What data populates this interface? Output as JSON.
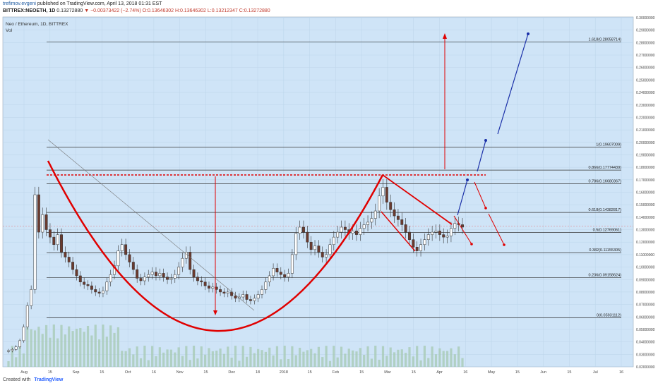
{
  "header": {
    "author": "trefimov.evgeni",
    "published_text": "published on TradingView.com, April 13, 2018 01:31 EST",
    "symbol": "BITTREX:NEOETH, 1D",
    "last": "0.13272880",
    "change": "−0.00373422 (−2.74%)",
    "open": "O:0.13646302",
    "high": "H:0.13646302",
    "low": "L:0.13212347",
    "close": "C:0.13272880"
  },
  "chart": {
    "legend_title": "Neo / Ethereum, 1D, BITTREX",
    "legend_vol": "Vol"
  },
  "footer": {
    "created_with": "Created with",
    "brand": "TradingView"
  },
  "colors": {
    "background": "#cfe4f7",
    "up_candle": "#ffffff",
    "down_candle": "#6b3a2e",
    "annotation_red": "#e00000",
    "annotation_blue": "#1a2fa8",
    "volume": "#a7cbb5"
  },
  "chart_data": {
    "type": "candlestick",
    "title": "Neo / Ethereum, 1D, BITTREX",
    "ylim": [
      0.0,
      0.3
    ],
    "y_scale": "log",
    "y_ticks": [
      "0.30000000",
      "0.29000000",
      "0.28000000",
      "0.27000000",
      "0.26000000",
      "0.25000000",
      "0.24000000",
      "0.23000000",
      "0.22000000",
      "0.21000000",
      "0.20000000",
      "0.19000000",
      "0.18000000",
      "0.17000000",
      "0.16000000",
      "0.15000000",
      "0.14000000",
      "0.13000000",
      "0.12000000",
      "0.11000000",
      "0.10000000",
      "0.09000000",
      "0.08000000",
      "0.07000000",
      "0.06000000",
      "0.05000000",
      "0.04000000",
      "0.03000000",
      "0.02000000"
    ],
    "x_ticks": [
      "Aug",
      "15",
      "Sep",
      "15",
      "Oct",
      "16",
      "Nov",
      "15",
      "Dec",
      "18",
      "2018",
      "15",
      "Feb",
      "15",
      "Mar",
      "15",
      "Apr",
      "16",
      "May",
      "15",
      "Jun",
      "15",
      "Jul",
      "16"
    ],
    "fib_levels": [
      {
        "label": "1.618(0.28058714)",
        "value": 0.28058714
      },
      {
        "label": "1(0.19607009)",
        "value": 0.19607009
      },
      {
        "label": "0.866(0.17774439)",
        "value": 0.17774439
      },
      {
        "label": "0.786(0.16680367)",
        "value": 0.16680367
      },
      {
        "label": "0.618(0.14382817)",
        "value": 0.14382817
      },
      {
        "label": "0.5(0.12769061)",
        "value": 0.12769061
      },
      {
        "label": "0.382(0.11155305)",
        "value": 0.11155305
      },
      {
        "label": "0.236(0.09158624)",
        "value": 0.09158624
      },
      {
        "label": "0(0.05931112)",
        "value": 0.05931112
      }
    ],
    "last_price": 0.1327288,
    "series": [
      {
        "values": [
          0.033,
          0.034,
          0.036,
          0.041,
          0.052,
          0.069,
          0.082,
          0.158,
          0.128,
          0.142,
          0.13,
          0.124,
          0.118,
          0.126,
          0.112,
          0.108,
          0.104,
          0.098,
          0.093,
          0.088,
          0.086,
          0.085,
          0.082,
          0.08,
          0.079,
          0.081,
          0.088,
          0.094,
          0.101,
          0.113,
          0.118,
          0.11,
          0.104,
          0.098,
          0.091,
          0.089,
          0.092,
          0.094,
          0.096,
          0.093,
          0.095,
          0.092,
          0.09,
          0.091,
          0.094,
          0.1,
          0.107,
          0.112,
          0.098,
          0.092,
          0.089,
          0.088,
          0.085,
          0.083,
          0.084,
          0.082,
          0.08,
          0.079,
          0.08,
          0.077,
          0.075,
          0.076,
          0.078,
          0.074,
          0.073,
          0.075,
          0.078,
          0.082,
          0.088,
          0.093,
          0.099,
          0.096,
          0.094,
          0.092,
          0.095,
          0.11,
          0.127,
          0.132,
          0.128,
          0.12,
          0.114,
          0.117,
          0.112,
          0.108,
          0.11,
          0.118,
          0.124,
          0.128,
          0.132,
          0.13,
          0.127,
          0.129,
          0.126,
          0.131,
          0.134,
          0.136,
          0.139,
          0.145,
          0.157,
          0.164,
          0.152,
          0.146,
          0.141,
          0.138,
          0.134,
          0.128,
          0.122,
          0.116,
          0.113,
          0.118,
          0.122,
          0.126,
          0.128,
          0.129,
          0.126,
          0.124,
          0.125,
          0.131,
          0.135,
          0.134,
          0.132
        ]
      }
    ]
  }
}
